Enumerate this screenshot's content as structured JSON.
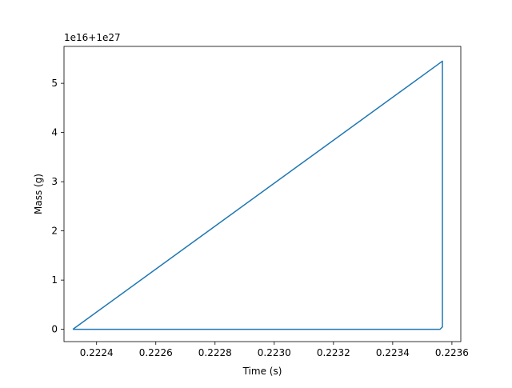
{
  "chart_data": {
    "type": "line",
    "title": "",
    "xlabel": "Time (s)",
    "ylabel": "Mass (g)",
    "y_offset_label": "1e16+1e27",
    "xlim": [
      0.22229,
      0.22363
    ],
    "ylim": [
      -0.25,
      5.75
    ],
    "grid": false,
    "x_ticks": [
      0.2224,
      0.2226,
      0.2228,
      0.223,
      0.2232,
      0.2234,
      0.2236
    ],
    "x_tick_labels": [
      "0.2224",
      "0.2226",
      "0.2228",
      "0.2230",
      "0.2232",
      "0.2234",
      "0.2236"
    ],
    "y_ticks": [
      0,
      1,
      2,
      3,
      4,
      5
    ],
    "y_tick_labels": [
      "0",
      "1",
      "2",
      "3",
      "4",
      "5"
    ],
    "series": [
      {
        "color": "#1f77b4",
        "x": [
          0.22232,
          0.223568,
          0.223568,
          0.22356,
          0.22356,
          0.22232
        ],
        "y": [
          0.0,
          5.45,
          0.05,
          0.0,
          0.0,
          0.0
        ]
      }
    ]
  }
}
